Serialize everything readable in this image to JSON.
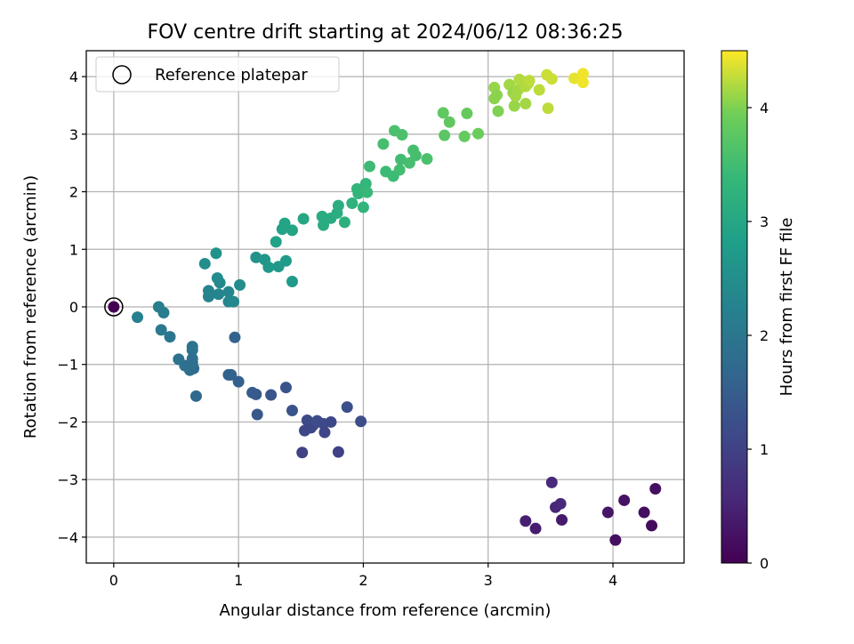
{
  "chart_data": {
    "type": "scatter",
    "title": "FOV centre drift starting at 2024/06/12 08:36:25",
    "xlabel": "Angular distance from reference (arcmin)",
    "ylabel": "Rotation from reference (arcmin)",
    "xlim": [
      -0.22,
      4.57
    ],
    "ylim": [
      -4.45,
      4.45
    ],
    "xticks": [
      "0",
      "1",
      "2",
      "3",
      "4"
    ],
    "yticks": [
      "−4",
      "−3",
      "−2",
      "−1",
      "0",
      "1",
      "2",
      "3",
      "4"
    ],
    "grid": true,
    "legend": {
      "placement": "top-left",
      "entries": [
        "Reference platepar"
      ]
    },
    "colorbar": {
      "label": "Hours from first FF file",
      "range": [
        0,
        4.5
      ],
      "ticks": [
        "0",
        "1",
        "2",
        "3",
        "4"
      ],
      "colormap": "viridis"
    },
    "reference_point": {
      "x": 0,
      "y": 0,
      "hours": 0
    },
    "points": [
      [
        3.3,
        -3.72,
        0.45
      ],
      [
        3.38,
        -3.85,
        0.4
      ],
      [
        3.51,
        -3.05,
        0.6
      ],
      [
        3.54,
        -3.48,
        0.55
      ],
      [
        3.58,
        -3.42,
        0.58
      ],
      [
        3.59,
        -3.7,
        0.35
      ],
      [
        3.96,
        -3.57,
        0.3
      ],
      [
        4.02,
        -4.05,
        0.2
      ],
      [
        4.09,
        -3.36,
        0.25
      ],
      [
        4.25,
        -3.57,
        0.2
      ],
      [
        4.31,
        -3.8,
        0.15
      ],
      [
        4.34,
        -3.16,
        0.22
      ],
      [
        1.51,
        -2.53,
        1.0
      ],
      [
        1.53,
        -2.15,
        1.1
      ],
      [
        1.55,
        -1.97,
        1.15
      ],
      [
        1.58,
        -2.1,
        1.05
      ],
      [
        1.6,
        -2.05,
        1.1
      ],
      [
        1.63,
        -1.98,
        1.2
      ],
      [
        1.68,
        -2.03,
        1.15
      ],
      [
        1.69,
        -2.18,
        1.05
      ],
      [
        1.74,
        -2.0,
        1.1
      ],
      [
        1.8,
        -2.52,
        1.0
      ],
      [
        1.87,
        -1.74,
        1.25
      ],
      [
        1.98,
        -1.99,
        1.2
      ],
      [
        1.38,
        -1.4,
        1.3
      ],
      [
        1.43,
        -1.8,
        1.3
      ],
      [
        1.26,
        -1.53,
        1.35
      ],
      [
        1.14,
        -1.52,
        1.4
      ],
      [
        1.15,
        -1.87,
        1.4
      ],
      [
        1.11,
        -1.49,
        1.45
      ],
      [
        1.0,
        -1.3,
        1.55
      ],
      [
        0.92,
        -1.18,
        1.6
      ],
      [
        0.94,
        -1.18,
        1.6
      ],
      [
        0.97,
        -0.53,
        1.6
      ],
      [
        0.66,
        -1.55,
        1.7
      ],
      [
        0.64,
        -1.07,
        1.75
      ],
      [
        0.61,
        -1.1,
        1.8
      ],
      [
        0.57,
        -1.02,
        1.85
      ],
      [
        0.63,
        -0.97,
        1.85
      ],
      [
        0.63,
        -0.9,
        1.85
      ],
      [
        0.52,
        -0.91,
        1.9
      ],
      [
        0.63,
        -0.75,
        1.9
      ],
      [
        0.63,
        -0.69,
        1.95
      ],
      [
        0.45,
        -0.52,
        2.0
      ],
      [
        0.38,
        -0.4,
        2.05
      ],
      [
        0.4,
        -0.1,
        2.1
      ],
      [
        0.36,
        0.0,
        2.15
      ],
      [
        0.19,
        -0.18,
        2.2
      ],
      [
        0.76,
        0.18,
        2.25
      ],
      [
        0.76,
        0.28,
        2.3
      ],
      [
        0.84,
        0.22,
        2.3
      ],
      [
        0.92,
        0.09,
        2.35
      ],
      [
        0.96,
        0.09,
        2.4
      ],
      [
        0.92,
        0.26,
        2.35
      ],
      [
        0.85,
        0.42,
        2.4
      ],
      [
        0.83,
        0.5,
        2.45
      ],
      [
        1.01,
        0.38,
        2.45
      ],
      [
        0.73,
        0.75,
        2.5
      ],
      [
        0.82,
        0.93,
        2.6
      ],
      [
        1.14,
        0.86,
        2.6
      ],
      [
        1.21,
        0.82,
        2.65
      ],
      [
        1.24,
        0.69,
        2.7
      ],
      [
        1.32,
        0.7,
        2.7
      ],
      [
        1.38,
        0.8,
        2.75
      ],
      [
        1.43,
        0.44,
        2.75
      ],
      [
        1.3,
        1.13,
        2.9
      ],
      [
        1.35,
        1.35,
        2.9
      ],
      [
        1.37,
        1.45,
        2.95
      ],
      [
        1.43,
        1.33,
        2.95
      ],
      [
        1.52,
        1.53,
        3.0
      ],
      [
        1.67,
        1.57,
        3.1
      ],
      [
        1.68,
        1.42,
        3.1
      ],
      [
        1.74,
        1.54,
        3.1
      ],
      [
        1.79,
        1.63,
        3.15
      ],
      [
        1.8,
        1.76,
        3.15
      ],
      [
        1.85,
        1.47,
        3.2
      ],
      [
        1.91,
        1.8,
        3.25
      ],
      [
        1.95,
        2.05,
        3.3
      ],
      [
        1.96,
        1.97,
        3.3
      ],
      [
        2.0,
        1.73,
        3.3
      ],
      [
        2.01,
        2.07,
        3.35
      ],
      [
        2.02,
        2.14,
        3.35
      ],
      [
        2.03,
        1.99,
        3.4
      ],
      [
        2.05,
        2.44,
        3.45
      ],
      [
        2.16,
        2.83,
        3.55
      ],
      [
        2.18,
        2.35,
        3.45
      ],
      [
        2.24,
        2.27,
        3.45
      ],
      [
        2.25,
        3.06,
        3.6
      ],
      [
        2.29,
        2.38,
        3.5
      ],
      [
        2.3,
        2.56,
        3.5
      ],
      [
        2.31,
        2.99,
        3.6
      ],
      [
        2.37,
        2.5,
        3.55
      ],
      [
        2.4,
        2.72,
        3.55
      ],
      [
        2.42,
        2.63,
        3.55
      ],
      [
        2.51,
        2.57,
        3.6
      ],
      [
        2.64,
        3.37,
        3.8
      ],
      [
        2.65,
        2.98,
        3.75
      ],
      [
        2.69,
        3.21,
        3.8
      ],
      [
        2.81,
        2.96,
        3.85
      ],
      [
        2.83,
        3.36,
        3.85
      ],
      [
        2.92,
        3.01,
        3.9
      ],
      [
        3.05,
        3.81,
        4.1
      ],
      [
        3.05,
        3.62,
        4.05
      ],
      [
        3.07,
        3.68,
        4.05
      ],
      [
        3.08,
        3.4,
        4.0
      ],
      [
        3.17,
        3.86,
        4.15
      ],
      [
        3.2,
        3.72,
        4.1
      ],
      [
        3.21,
        3.49,
        4.1
      ],
      [
        3.22,
        3.66,
        4.15
      ],
      [
        3.24,
        3.77,
        4.15
      ],
      [
        3.25,
        3.95,
        4.2
      ],
      [
        3.3,
        3.83,
        4.2
      ],
      [
        3.32,
        3.88,
        4.2
      ],
      [
        3.3,
        3.53,
        4.15
      ],
      [
        3.33,
        3.93,
        4.25
      ],
      [
        3.41,
        3.77,
        4.25
      ],
      [
        3.47,
        4.03,
        4.3
      ],
      [
        3.48,
        3.45,
        4.25
      ],
      [
        3.51,
        3.96,
        4.3
      ],
      [
        3.69,
        3.97,
        4.4
      ],
      [
        3.76,
        3.9,
        4.45
      ],
      [
        3.76,
        4.05,
        4.45
      ]
    ]
  }
}
